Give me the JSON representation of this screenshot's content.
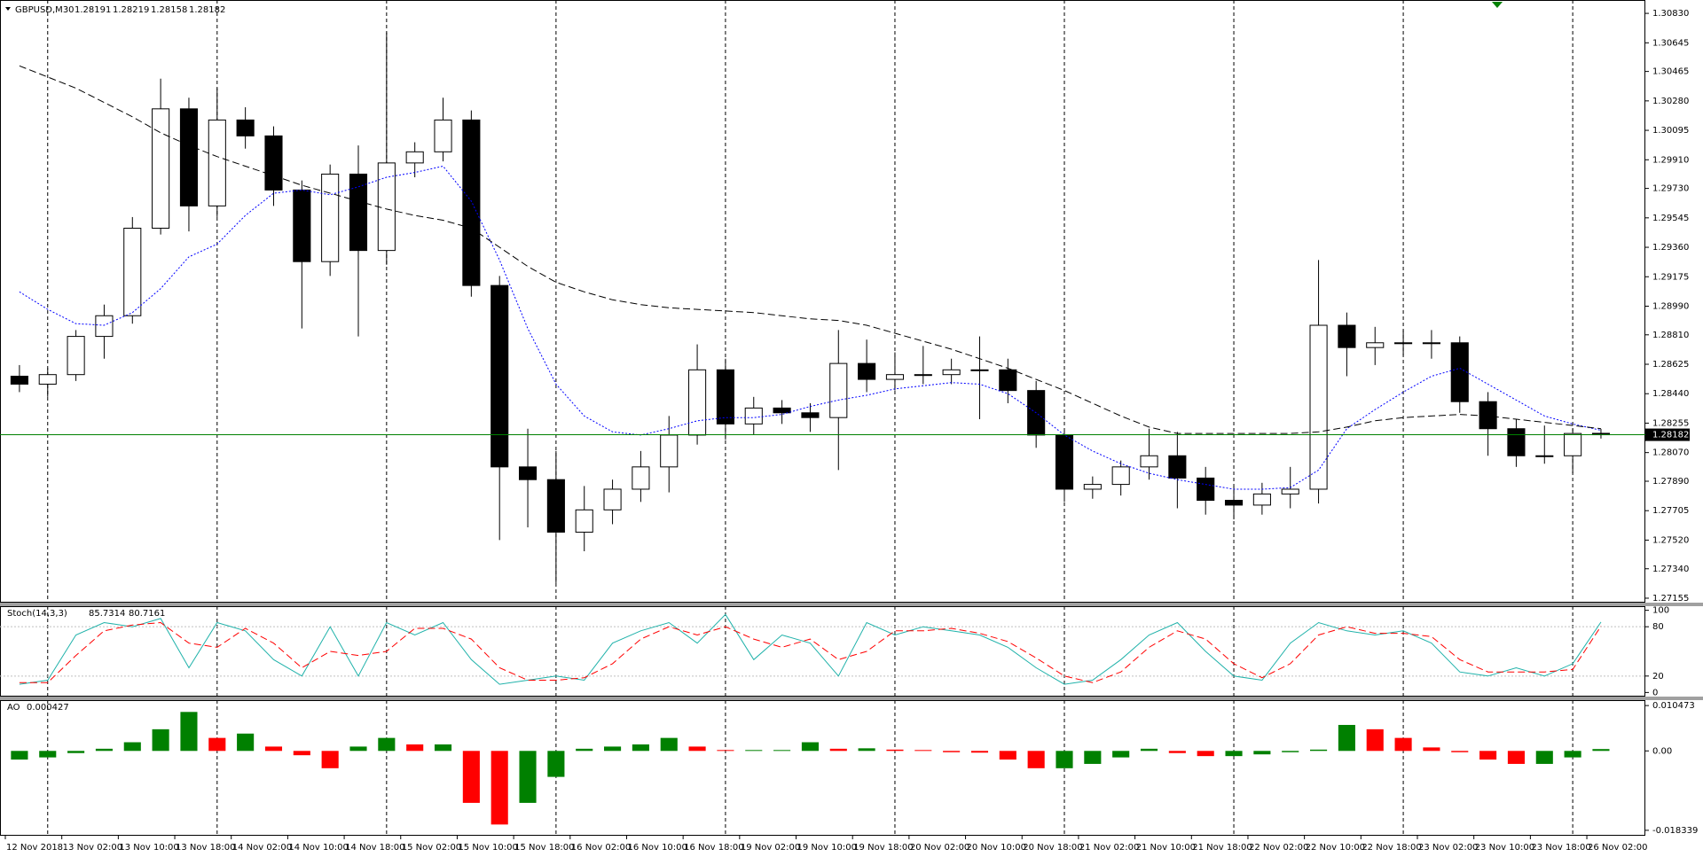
{
  "chart_data": [
    {
      "type": "candlestick",
      "title": "GBPUSD,M30",
      "ylim": [
        1.27127,
        1.30914
      ],
      "yticks": [
        {
          "value": 1.3083,
          "label": "1.30830"
        },
        1.30645,
        1.30465,
        {
          "value": 1.3028,
          "label": "1.30280"
        },
        1.30095,
        {
          "value": 1.2991,
          "label": "1.29910"
        },
        {
          "value": 1.2973,
          "label": "1.29730"
        },
        1.29545,
        {
          "value": 1.2936,
          "label": "1.29360"
        },
        1.29175,
        {
          "value": 1.2899,
          "label": "1.28990"
        },
        {
          "value": 1.2881,
          "label": "1.28810"
        },
        1.28625,
        {
          "value": 1.2844,
          "label": "1.28440"
        },
        1.28255,
        {
          "value": 1.2807,
          "label": "1.28070"
        },
        {
          "value": 1.2789,
          "label": "1.27890"
        },
        1.27705,
        {
          "value": 1.2752,
          "label": "1.27520"
        },
        {
          "value": 1.2734,
          "label": "1.27340"
        },
        1.27155
      ],
      "up_color": "#ffffff",
      "down_color": "#000000",
      "price_line_color": "#008000",
      "x_labels": [
        "12 Nov 2018",
        "13 Nov 02:00",
        "13 Nov 10:00",
        "13 Nov 18:00",
        "14 Nov 02:00",
        "14 Nov 10:00",
        "14 Nov 18:00",
        "15 Nov 02:00",
        "15 Nov 10:00",
        "15 Nov 18:00",
        "16 Nov 02:00",
        "16 Nov 10:00",
        "16 Nov 18:00",
        "19 Nov 02:00",
        "19 Nov 10:00",
        "19 Nov 18:00",
        "20 Nov 02:00",
        "20 Nov 10:00",
        "20 Nov 18:00",
        "21 Nov 02:00",
        "21 Nov 10:00",
        "21 Nov 18:00",
        "22 Nov 02:00",
        "22 Nov 10:00",
        "22 Nov 18:00",
        "23 Nov 02:00",
        "23 Nov 10:00",
        "23 Nov 18:00",
        "26 Nov 02:00"
      ],
      "candles": [
        [
          1.2855,
          1.2862,
          1.2845,
          1.285
        ],
        [
          1.285,
          1.286,
          1.2842,
          1.2856
        ],
        [
          1.2856,
          1.2884,
          1.2852,
          1.288
        ],
        [
          1.288,
          1.29,
          1.2866,
          1.2893
        ],
        [
          1.2893,
          1.2955,
          1.2888,
          1.2948
        ],
        [
          1.2948,
          1.3042,
          1.2944,
          1.3023
        ],
        [
          1.3023,
          1.303,
          1.2946,
          1.2962
        ],
        [
          1.2962,
          1.3036,
          1.2955,
          1.3016
        ],
        [
          1.3016,
          1.3024,
          1.2998,
          1.3006
        ],
        [
          1.3006,
          1.3012,
          1.2962,
          1.2972
        ],
        [
          1.2972,
          1.2978,
          1.2885,
          1.2927
        ],
        [
          1.2927,
          1.2988,
          1.2918,
          1.2982
        ],
        [
          1.2982,
          1.3,
          1.288,
          1.2934
        ],
        [
          1.2934,
          1.3071,
          1.2925,
          1.2989
        ],
        [
          1.2989,
          1.3002,
          1.298,
          1.2996
        ],
        [
          1.2996,
          1.303,
          1.299,
          1.3016
        ],
        [
          1.3016,
          1.3022,
          1.2905,
          1.2912
        ],
        [
          1.2912,
          1.2918,
          1.2752,
          1.2798
        ],
        [
          1.2798,
          1.2822,
          1.276,
          1.279
        ],
        [
          1.279,
          1.2808,
          1.2725,
          1.2757
        ],
        [
          1.2757,
          1.2786,
          1.2745,
          1.2771
        ],
        [
          1.2771,
          1.279,
          1.2762,
          1.2784
        ],
        [
          1.2784,
          1.2808,
          1.2776,
          1.2798
        ],
        [
          1.2798,
          1.283,
          1.2782,
          1.2818
        ],
        [
          1.2818,
          1.2875,
          1.2812,
          1.2859
        ],
        [
          1.2859,
          1.2866,
          1.2815,
          1.2825
        ],
        [
          1.2825,
          1.2842,
          1.2818,
          1.2835
        ],
        [
          1.2835,
          1.284,
          1.2825,
          1.2832
        ],
        [
          1.2832,
          1.2838,
          1.282,
          1.2829
        ],
        [
          1.2829,
          1.2884,
          1.2796,
          1.2863
        ],
        [
          1.2863,
          1.2878,
          1.2845,
          1.2853
        ],
        [
          1.2853,
          1.287,
          1.2846,
          1.2856
        ],
        [
          1.2856,
          1.2874,
          1.285,
          1.2856
        ],
        [
          1.2856,
          1.2866,
          1.285,
          1.2859
        ],
        [
          1.2859,
          1.288,
          1.2828,
          1.2859
        ],
        [
          1.2859,
          1.2866,
          1.2838,
          1.2846
        ],
        [
          1.2846,
          1.2852,
          1.281,
          1.2818
        ],
        [
          1.2818,
          1.2822,
          1.2776,
          1.2784
        ],
        [
          1.2784,
          1.2792,
          1.2778,
          1.2787
        ],
        [
          1.2787,
          1.2802,
          1.278,
          1.2798
        ],
        [
          1.2798,
          1.2822,
          1.279,
          1.2805
        ],
        [
          1.2805,
          1.282,
          1.2772,
          1.2791
        ],
        [
          1.2791,
          1.2798,
          1.2768,
          1.2777
        ],
        [
          1.2777,
          1.2786,
          1.2765,
          1.2774
        ],
        [
          1.2774,
          1.2788,
          1.2768,
          1.2781
        ],
        [
          1.2781,
          1.2798,
          1.2772,
          1.2784
        ],
        [
          1.2784,
          1.2928,
          1.2775,
          1.2887
        ],
        [
          1.2887,
          1.2895,
          1.2855,
          1.2873
        ],
        [
          1.2873,
          1.2886,
          1.2862,
          1.2876
        ],
        [
          1.2876,
          1.2884,
          1.2868,
          1.2876
        ],
        [
          1.2876,
          1.2884,
          1.2866,
          1.2876
        ],
        [
          1.2876,
          1.288,
          1.2832,
          1.2839
        ],
        [
          1.2839,
          1.2845,
          1.2805,
          1.2822
        ],
        [
          1.2822,
          1.2828,
          1.2798,
          1.2805
        ],
        [
          1.2805,
          1.2824,
          1.28,
          1.2805
        ],
        [
          1.2805,
          1.2822,
          1.2794,
          1.2819
        ],
        [
          1.28191,
          1.28219,
          1.28158,
          1.28182
        ]
      ],
      "series": [
        {
          "color": "#0000ff",
          "style": "dotted",
          "values": [
            1.2908,
            1.2897,
            1.2888,
            1.2887,
            1.2895,
            1.291,
            1.293,
            1.2938,
            1.2956,
            1.297,
            1.2972,
            1.2969,
            1.2974,
            1.298,
            1.2983,
            1.2987,
            1.2965,
            1.2928,
            1.2885,
            1.285,
            1.283,
            1.282,
            1.2818,
            1.2822,
            1.2827,
            1.2829,
            1.2829,
            1.2831,
            1.2836,
            1.284,
            1.2843,
            1.2847,
            1.2849,
            1.2851,
            1.285,
            1.2844,
            1.2832,
            1.2818,
            1.2808,
            1.28,
            1.2794,
            1.279,
            1.2787,
            1.2784,
            1.2784,
            1.2785,
            1.2796,
            1.2822,
            1.2834,
            1.2845,
            1.2855,
            1.286,
            1.285,
            1.284,
            1.283,
            1.2825,
            1.2821
          ]
        },
        {
          "color": "#000000",
          "style": "dashed",
          "values": [
            1.305,
            1.3043,
            1.3036,
            1.3027,
            1.3018,
            1.3008,
            1.3,
            1.2993,
            1.2987,
            1.2981,
            1.2975,
            1.297,
            1.2965,
            1.296,
            1.2956,
            1.2953,
            1.2948,
            1.2936,
            1.2924,
            1.2914,
            1.2908,
            1.2903,
            1.29,
            1.2898,
            1.2897,
            1.2896,
            1.2895,
            1.2893,
            1.2891,
            1.289,
            1.2887,
            1.2882,
            1.2877,
            1.2872,
            1.2866,
            1.286,
            1.2853,
            1.2846,
            1.2838,
            1.283,
            1.2823,
            1.2819,
            1.2819,
            1.2819,
            1.2819,
            1.2819,
            1.282,
            1.2823,
            1.2827,
            1.2829,
            1.283,
            1.2831,
            1.283,
            1.2828,
            1.2826,
            1.2824,
            1.2822
          ]
        }
      ]
    },
    {
      "type": "line",
      "title": "Stoch(14,3,3)",
      "ylim": [
        -5,
        105
      ],
      "yticks": [
        100,
        80,
        20,
        0
      ],
      "levels": [
        80,
        20
      ],
      "series": [
        {
          "color": "#20b2aa",
          "style": "solid",
          "values": [
            10,
            15,
            70,
            85,
            80,
            90,
            30,
            85,
            75,
            40,
            20,
            80,
            20,
            85,
            70,
            85,
            40,
            10,
            15,
            20,
            15,
            60,
            75,
            85,
            60,
            95,
            40,
            70,
            60,
            20,
            85,
            70,
            80,
            75,
            70,
            55,
            30,
            10,
            15,
            40,
            70,
            85,
            50,
            20,
            15,
            60,
            85,
            75,
            70,
            75,
            60,
            25,
            20,
            30,
            20,
            35,
            85.7314
          ]
        },
        {
          "color": "#ff0000",
          "style": "dashed",
          "values": [
            12,
            12,
            45,
            75,
            82,
            85,
            60,
            55,
            78,
            60,
            30,
            50,
            45,
            50,
            78,
            78,
            65,
            30,
            15,
            15,
            18,
            35,
            65,
            80,
            70,
            80,
            65,
            55,
            65,
            40,
            50,
            75,
            75,
            78,
            72,
            62,
            42,
            20,
            12,
            25,
            55,
            75,
            65,
            35,
            18,
            35,
            70,
            80,
            72,
            72,
            68,
            40,
            25,
            25,
            25,
            28,
            80.7161
          ]
        }
      ]
    },
    {
      "type": "histogram",
      "title": "AO",
      "ylim": [
        -0.019592,
        0.011726
      ],
      "yticks": [
        0.010473,
        {
          "value": 0,
          "label": "0.00"
        },
        -0.018339
      ],
      "up_color": "#008000",
      "down_color": "#ff0000",
      "values": [
        -0.002,
        -0.0015,
        -0.0005,
        0.0005,
        0.002,
        0.005,
        0.009,
        0.003,
        0.004,
        0.001,
        -0.001,
        -0.004,
        0.001,
        0.003,
        0.0015,
        0.0015,
        -0.012,
        -0.017,
        -0.012,
        -0.006,
        0.0005,
        0.001,
        0.0015,
        0.003,
        0.001,
        0.0002,
        0.0002,
        0.0002,
        0.002,
        0.0005,
        0.0006,
        0.0003,
        0.0002,
        -0.0003,
        -0.0004,
        -0.002,
        -0.004,
        -0.004,
        -0.003,
        -0.0015,
        0.0005,
        -0.0005,
        -0.0012,
        -0.0012,
        -0.0008,
        -0.0003,
        0.0003,
        0.006,
        0.005,
        0.003,
        0.0008,
        -0.0003,
        -0.002,
        -0.003,
        -0.003,
        -0.0015,
        0.000427
      ]
    }
  ]
}
